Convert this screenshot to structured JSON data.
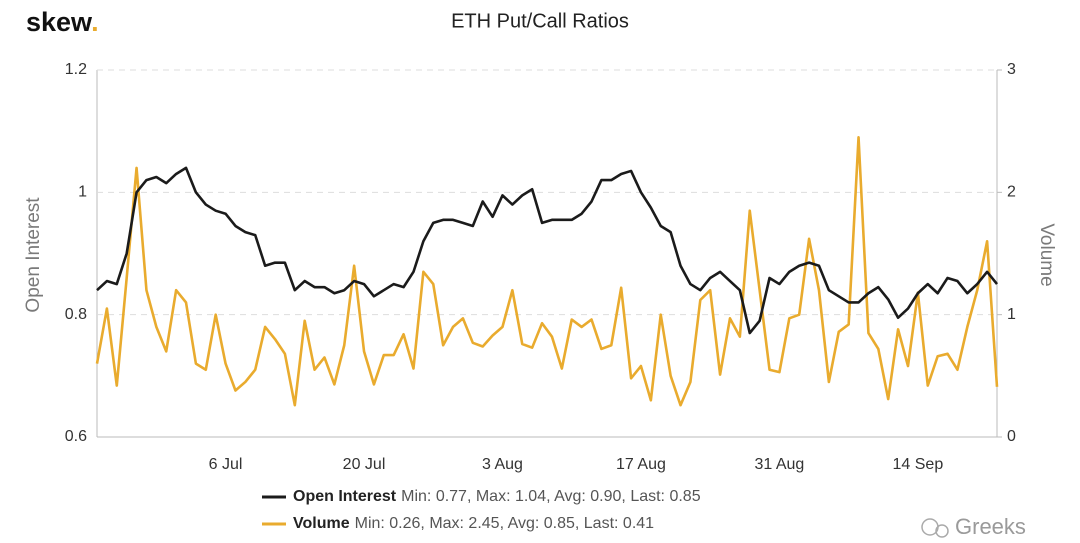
{
  "logo": {
    "text": "skew",
    "dot": "."
  },
  "watermark": "Greeks",
  "chart_data": {
    "type": "line",
    "title": "ETH Put/Call Ratios",
    "y_label": "Open Interest",
    "y2_label": "Volume",
    "categories": [
      null,
      null,
      null,
      null,
      null,
      null,
      null,
      null,
      null,
      null,
      null,
      null,
      null,
      "6 Jul",
      null,
      null,
      null,
      null,
      null,
      null,
      null,
      null,
      null,
      null,
      null,
      null,
      null,
      "20 Jul",
      null,
      null,
      null,
      null,
      null,
      null,
      null,
      null,
      null,
      null,
      null,
      null,
      null,
      "3 Aug",
      null,
      null,
      null,
      null,
      null,
      null,
      null,
      null,
      null,
      null,
      null,
      null,
      null,
      "17 Aug",
      null,
      null,
      null,
      null,
      null,
      null,
      null,
      null,
      null,
      null,
      null,
      null,
      null,
      "31 Aug",
      null,
      null,
      null,
      null,
      null,
      null,
      null,
      null,
      null,
      null,
      null,
      null,
      null,
      "14 Sep",
      null,
      null,
      null,
      null,
      null,
      null,
      null,
      null
    ],
    "ylim": [
      0.6,
      1.2
    ],
    "yticks": [
      0.6,
      0.8,
      1,
      1.2
    ],
    "y2lim": [
      0,
      3
    ],
    "y2ticks": [
      0,
      1,
      2,
      3
    ],
    "grid": true,
    "series": [
      {
        "name": "Open Interest",
        "summary": "Min: 0.77, Max: 1.04, Avg: 0.90, Last: 0.85",
        "color": "#1b1b1b",
        "values": [
          0.84,
          0.855,
          0.85,
          0.9,
          1.0,
          1.02,
          1.025,
          1.015,
          1.03,
          1.04,
          1.0,
          0.98,
          0.97,
          0.965,
          0.945,
          0.935,
          0.93,
          0.88,
          0.885,
          0.885,
          0.84,
          0.855,
          0.845,
          0.845,
          0.835,
          0.84,
          0.855,
          0.85,
          0.83,
          0.84,
          0.85,
          0.845,
          0.87,
          0.92,
          0.95,
          0.955,
          0.955,
          0.95,
          0.945,
          0.985,
          0.96,
          0.995,
          0.98,
          0.995,
          1.005,
          0.95,
          0.955,
          0.955,
          0.955,
          0.965,
          0.985,
          1.02,
          1.02,
          1.03,
          1.035,
          1.0,
          0.975,
          0.945,
          0.935,
          0.88,
          0.85,
          0.84,
          0.86,
          0.87,
          0.855,
          0.84,
          0.77,
          0.79,
          0.86,
          0.85,
          0.87,
          0.88,
          0.885,
          0.88,
          0.84,
          0.83,
          0.82,
          0.82,
          0.835,
          0.845,
          0.825,
          0.795,
          0.81,
          0.835,
          0.85,
          0.835,
          0.86,
          0.855,
          0.835,
          0.85,
          0.87,
          0.85
        ]
      },
      {
        "name": "Volume",
        "summary": "Min: 0.26, Max: 2.45, Avg: 0.85, Last: 0.41",
        "color": "#e9ab2e",
        "axis": "y2",
        "values": [
          0.6,
          1.05,
          0.42,
          1.3,
          2.2,
          1.2,
          0.9,
          0.7,
          1.2,
          1.1,
          0.6,
          0.55,
          1.0,
          0.6,
          0.38,
          0.45,
          0.55,
          0.9,
          0.8,
          0.68,
          0.26,
          0.95,
          0.55,
          0.65,
          0.43,
          0.75,
          1.4,
          0.7,
          0.43,
          0.67,
          0.67,
          0.84,
          0.56,
          1.35,
          1.25,
          0.75,
          0.9,
          0.97,
          0.77,
          0.74,
          0.83,
          0.9,
          1.2,
          0.76,
          0.73,
          0.93,
          0.82,
          0.56,
          0.96,
          0.9,
          0.96,
          0.72,
          0.75,
          1.22,
          0.48,
          0.58,
          0.3,
          1.0,
          0.5,
          0.26,
          0.45,
          1.12,
          1.2,
          0.51,
          0.97,
          0.82,
          1.85,
          1.2,
          0.55,
          0.53,
          0.97,
          1.0,
          1.62,
          1.2,
          0.45,
          0.86,
          0.92,
          2.45,
          0.85,
          0.72,
          0.31,
          0.88,
          0.58,
          1.18,
          0.42,
          0.66,
          0.68,
          0.55,
          0.9,
          1.2,
          1.6,
          0.41
        ]
      }
    ]
  }
}
